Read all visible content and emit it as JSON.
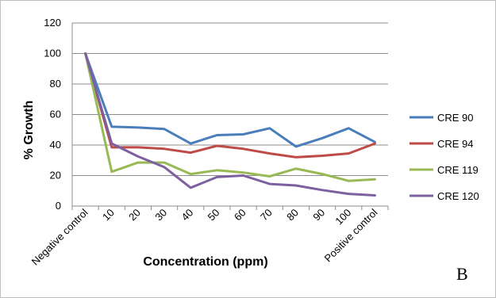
{
  "chart_data": {
    "type": "line",
    "title": "",
    "xlabel": "Concentration (ppm)",
    "ylabel": "% Growth",
    "ylim": [
      0,
      120
    ],
    "yticks": [
      0,
      20,
      40,
      60,
      80,
      100,
      120
    ],
    "grid": true,
    "legend_position": "right",
    "categories": [
      "Negative control",
      "10",
      "20",
      "30",
      "40",
      "50",
      "60",
      "70",
      "80",
      "90",
      "100",
      "Positive control"
    ],
    "series": [
      {
        "name": "CRE 90",
        "color": "#4a7ebb",
        "values": [
          100,
          52,
          51.5,
          50.5,
          41,
          46.5,
          47,
          51,
          39,
          44.5,
          51,
          42
        ]
      },
      {
        "name": "CRE 94",
        "color": "#be4b48",
        "values": [
          100,
          38.5,
          38.5,
          37.5,
          35,
          39.5,
          37.5,
          34.5,
          32,
          33,
          34.5,
          41
        ]
      },
      {
        "name": "CRE 119",
        "color": "#98b954",
        "values": [
          100,
          22.5,
          28.5,
          28.5,
          21,
          23.5,
          22,
          19.5,
          24.5,
          21,
          16.5,
          17.5
        ]
      },
      {
        "name": "CRE 120",
        "color": "#7d60a0",
        "values": [
          100,
          41,
          32.5,
          25.5,
          12,
          19,
          20,
          14.5,
          13.5,
          10.5,
          8,
          7
        ]
      }
    ],
    "panel_label": "B"
  }
}
